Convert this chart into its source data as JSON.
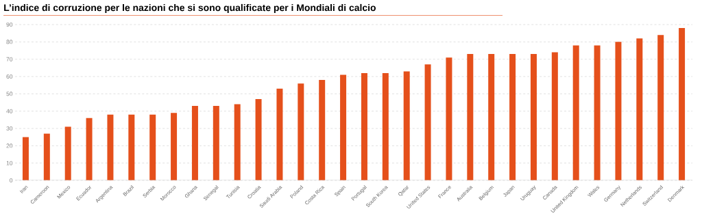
{
  "chart_data": {
    "type": "bar",
    "title": "L’indice di corruzione per le nazioni che si sono qualificate per i Mondiali di calcio",
    "categories": [
      "Iran",
      "Cameroon",
      "Mexico",
      "Ecuador",
      "Argentina",
      "Brazil",
      "Serbia",
      "Morocco",
      "Ghana",
      "Senegal",
      "Tunisia",
      "Croatia",
      "Saudi Arabia",
      "Poland",
      "Costa Rica",
      "Spain",
      "Portugal",
      "South Korea",
      "Qatar",
      "United States",
      "France",
      "Australia",
      "Belgium",
      "Japan",
      "Uruguay",
      "Canada",
      "United Kingdom",
      "Wales",
      "Germany",
      "Netherlands",
      "Switzerland",
      "Denmark"
    ],
    "values": [
      25,
      27,
      31,
      36,
      38,
      38,
      38,
      39,
      43,
      43,
      44,
      47,
      53,
      56,
      58,
      61,
      62,
      62,
      63,
      67,
      71,
      73,
      73,
      73,
      73,
      74,
      78,
      78,
      80,
      82,
      84,
      88
    ],
    "color": "#e5501b",
    "ylim": [
      0,
      90
    ],
    "yticks": [
      0,
      10,
      20,
      30,
      40,
      50,
      60,
      70,
      80,
      90
    ],
    "grid": "y"
  }
}
